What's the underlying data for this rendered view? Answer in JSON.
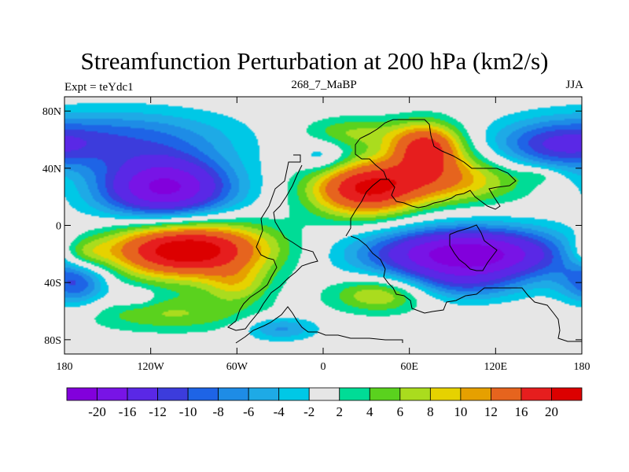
{
  "chart_data": {
    "type": "heatmap",
    "title": "Streamfunction Perturbation at 200 hPa (km2/s)",
    "left_label": "Expt = teYdc1",
    "center_label": "268_7_MaBP",
    "right_label": "JJA",
    "x_range": [
      -180,
      180
    ],
    "y_range": [
      -90,
      90
    ],
    "x_ticks": [
      {
        "value": -180,
        "label": "180"
      },
      {
        "value": -120,
        "label": "120W"
      },
      {
        "value": -60,
        "label": "60W"
      },
      {
        "value": 0,
        "label": "0"
      },
      {
        "value": 60,
        "label": "60E"
      },
      {
        "value": 120,
        "label": "120E"
      },
      {
        "value": 180,
        "label": "180"
      }
    ],
    "y_ticks": [
      {
        "value": 80,
        "label": "80N"
      },
      {
        "value": 40,
        "label": "40N"
      },
      {
        "value": 0,
        "label": "0"
      },
      {
        "value": -40,
        "label": "40S"
      },
      {
        "value": -80,
        "label": "80S"
      }
    ],
    "colorbar": {
      "levels": [
        -20,
        -16,
        -12,
        -10,
        -8,
        -6,
        -4,
        -2,
        2,
        4,
        6,
        8,
        10,
        12,
        16,
        20
      ],
      "labels": [
        "-20",
        "-16",
        "-12",
        "-10",
        "-8",
        "-6",
        "-4",
        "-2",
        "2",
        "4",
        "6",
        "8",
        "10",
        "12",
        "16",
        "20"
      ],
      "colors": [
        "#8200dc",
        "#7814e6",
        "#5a28e6",
        "#3c3cdc",
        "#1e64e6",
        "#1e8ce6",
        "#1eaae6",
        "#00c8e6",
        "#e6e6e6",
        "#00dc96",
        "#5ad21e",
        "#aadc1e",
        "#e6d200",
        "#e6a000",
        "#e6641e",
        "#e61e1e",
        "#dc0000"
      ]
    },
    "anomalies": [
      {
        "lon": -140,
        "lat": 62,
        "amp": -8,
        "slon": 55,
        "slat": 14
      },
      {
        "lon": -110,
        "lat": 26,
        "amp": -21,
        "slon": 33,
        "slat": 16
      },
      {
        "lon": -172,
        "lat": -40,
        "amp": -10,
        "slon": 16,
        "slat": 12
      },
      {
        "lon": -95,
        "lat": -17,
        "amp": 24,
        "slon": 40,
        "slat": 14
      },
      {
        "lon": -168,
        "lat": -20,
        "amp": 7,
        "slon": 14,
        "slat": 8
      },
      {
        "lon": -60,
        "lat": -42,
        "amp": 6,
        "slon": 16,
        "slat": 9
      },
      {
        "lon": -105,
        "lat": -62,
        "amp": 6,
        "slon": 45,
        "slat": 9
      },
      {
        "lon": -130,
        "lat": -50,
        "amp": -3.5,
        "slon": 10,
        "slat": 5
      },
      {
        "lon": 100,
        "lat": -20,
        "amp": -23,
        "slon": 48,
        "slat": 13
      },
      {
        "lon": 40,
        "lat": -48,
        "amp": 9,
        "slon": 24,
        "slat": 9
      },
      {
        "lon": 95,
        "lat": -42,
        "amp": -6,
        "slon": 30,
        "slat": 9
      },
      {
        "lon": -30,
        "lat": -72,
        "amp": -7,
        "slon": 18,
        "slat": 6
      },
      {
        "lon": 28,
        "lat": 25,
        "amp": 18,
        "slon": 27,
        "slat": 14
      },
      {
        "lon": 72,
        "lat": 55,
        "amp": 17,
        "slon": 18,
        "slat": 12
      },
      {
        "lon": 85,
        "lat": 32,
        "amp": 11,
        "slon": 38,
        "slat": 12
      },
      {
        "lon": 20,
        "lat": 65,
        "amp": 6,
        "slon": 25,
        "slat": 8
      },
      {
        "lon": 0,
        "lat": 48,
        "amp": -5,
        "slon": 12,
        "slat": 8
      },
      {
        "lon": 160,
        "lat": 55,
        "amp": -9,
        "slon": 30,
        "slat": 12
      },
      {
        "lon": 150,
        "lat": 35,
        "amp": 3,
        "slon": 10,
        "slat": 4
      }
    ]
  }
}
